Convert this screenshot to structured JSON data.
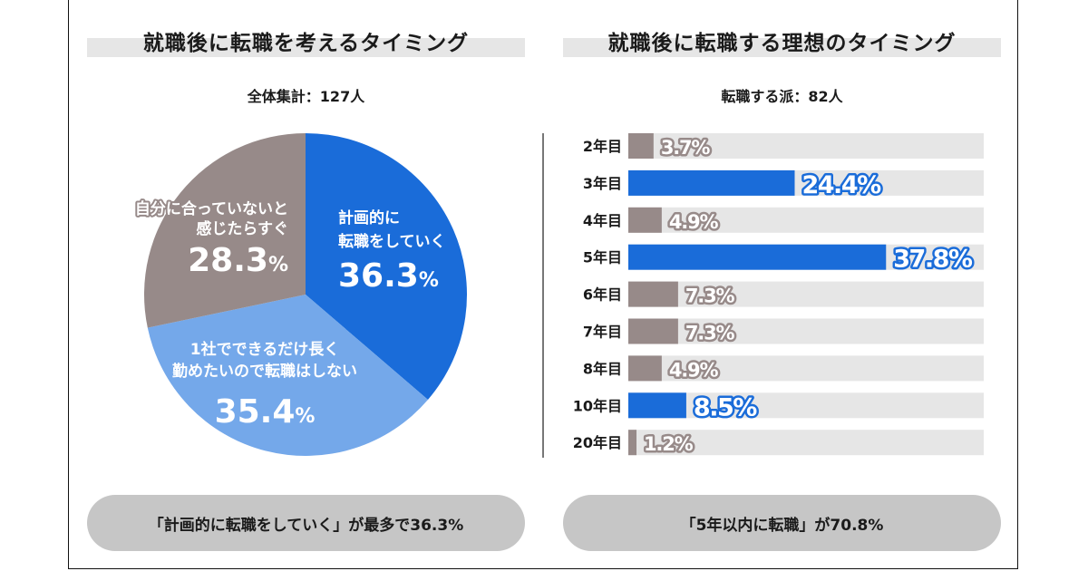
{
  "left_panel": {
    "title": "就職後に転職を考えるタイミング",
    "subtitle": "全体集計：127人",
    "summary": "「計画的に転職をしていく」が最多で36.3%"
  },
  "right_panel": {
    "title": "就職後に転職する理想のタイミング",
    "subtitle": "転職する派：82人",
    "summary": "「5年以内に転職」が70.8%"
  },
  "colors": {
    "blue": "#1a6cd9",
    "light_blue": "#74a8ea",
    "gray": "#978a89",
    "track": "#e6e6e6"
  },
  "chart_data": [
    {
      "type": "pie",
      "title": "就職後に転職を考えるタイミング",
      "subtitle": "全体集計：127人",
      "slices": [
        {
          "label_lines": [
            "計画的に",
            "転職をしていく"
          ],
          "value": 36.3,
          "value_label": "36.3",
          "color": "#1a6cd9"
        },
        {
          "label_lines": [
            "1社でできるだけ長く",
            "勤めたいので転職はしない"
          ],
          "value": 35.4,
          "value_label": "35.4",
          "color": "#74a8ea"
        },
        {
          "label_lines": [
            "自分に合っていないと",
            "感じたらすぐ"
          ],
          "value": 28.3,
          "value_label": "28.3",
          "color": "#978a89"
        }
      ],
      "start": "12 o'clock, clockwise",
      "unit": "%"
    },
    {
      "type": "bar",
      "orientation": "horizontal",
      "title": "就職後に転職する理想のタイミング",
      "subtitle": "転職する派：82人",
      "categories": [
        "2年目",
        "3年目",
        "4年目",
        "5年目",
        "6年目",
        "7年目",
        "8年目",
        "10年目",
        "20年目"
      ],
      "values": [
        3.7,
        24.4,
        4.9,
        37.8,
        7.3,
        7.3,
        4.9,
        8.5,
        1.2
      ],
      "value_labels": [
        "3.7%",
        "24.4%",
        "4.9%",
        "37.8%",
        "7.3%",
        "7.3%",
        "4.9%",
        "8.5%",
        "1.2%"
      ],
      "highlight": [
        false,
        true,
        false,
        true,
        false,
        false,
        false,
        true,
        false
      ],
      "xlim": [
        0,
        52
      ],
      "unit": "%",
      "grid": false,
      "legend": "none"
    }
  ]
}
